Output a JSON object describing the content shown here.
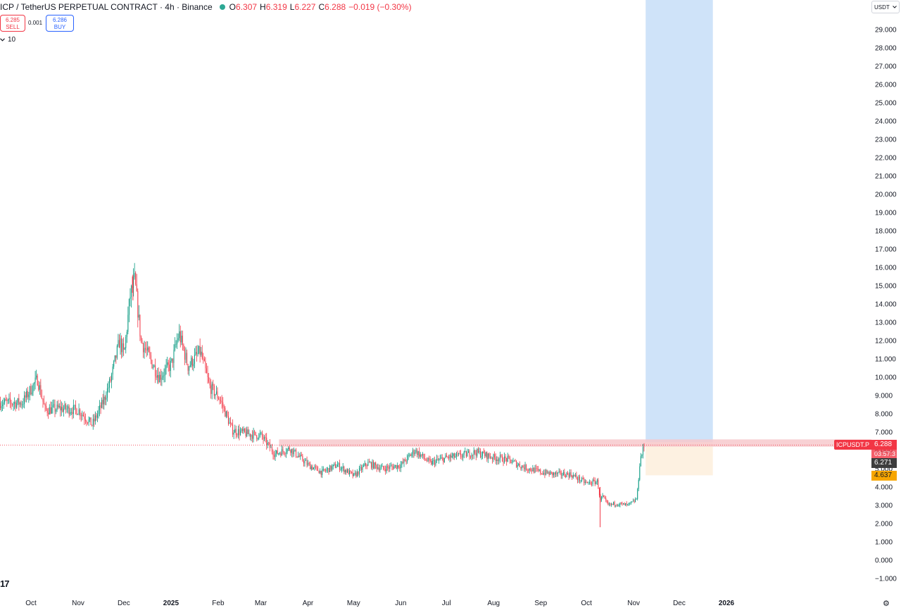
{
  "header": {
    "symbol": "ICP / TetherUS PERPETUAL CONTRACT · 4h · Binance",
    "ohlc": [
      {
        "key": "O",
        "value": "6.307"
      },
      {
        "key": "H",
        "value": "6.319"
      },
      {
        "key": "L",
        "value": "6.227"
      },
      {
        "key": "C",
        "value": "6.288"
      }
    ],
    "change": "−0.019 (−0.30%)",
    "status_color": "#089981"
  },
  "trade": {
    "sell_price": "6.285",
    "sell_label": "SELL",
    "spread": "0.001",
    "buy_price": "6.286",
    "buy_label": "BUY"
  },
  "interval_value": "10",
  "currency": "USDT",
  "logo": "17",
  "tags": {
    "symbol": "ICPUSDT.P",
    "last_price": "6.288",
    "countdown": "03:57:3",
    "price_2": "6.271",
    "price_3": "4.637"
  },
  "icons": [
    "chevron-down-icon",
    "gear-icon",
    "status-dot-icon"
  ],
  "colors": {
    "up": "#089981",
    "down": "#f23645",
    "target_zone": "#cfe3f9",
    "stop_zone": "#fdf1e1",
    "resistance_zone": "#f7c9cd",
    "last_price_tag": "#f23645",
    "tag_2": "#3d3d3d",
    "tag_3": "#f7a600"
  },
  "chart_data": {
    "type": "line",
    "subtype": "candlestick",
    "title": "ICP / TetherUS PERPETUAL CONTRACT · 4h · Binance",
    "xlabel": "",
    "ylabel": "",
    "x_ticks": [
      "Oct",
      "Nov",
      "Dec",
      "2025",
      "Feb",
      "Mar",
      "Apr",
      "May",
      "Jun",
      "Jul",
      "Aug",
      "Sep",
      "Oct",
      "Nov",
      "Dec",
      "2026"
    ],
    "y_ticks": [
      "29.000",
      "28.000",
      "27.000",
      "26.000",
      "25.000",
      "24.000",
      "23.000",
      "22.000",
      "21.000",
      "20.000",
      "19.000",
      "18.000",
      "17.000",
      "16.000",
      "15.000",
      "14.000",
      "13.000",
      "12.000",
      "11.000",
      "10.000",
      "9.000",
      "8.000",
      "7.000",
      "6.000",
      "5.000",
      "4.000",
      "3.000",
      "2.000",
      "1.000",
      "0.000",
      "−1.000"
    ],
    "ylim": [
      -1.5,
      30
    ],
    "grid": false,
    "series": [
      {
        "x": [
          "2024-09-25",
          "2024-10-05",
          "2024-10-10",
          "2024-10-20",
          "2024-11-01",
          "2024-11-10",
          "2024-11-17",
          "2024-11-22",
          "2024-11-28",
          "2024-12-01",
          "2024-12-05",
          "2024-12-08",
          "2024-12-12",
          "2024-12-18",
          "2024-12-24",
          "2025-01-01",
          "2025-01-06",
          "2025-01-12",
          "2025-01-20",
          "2025-01-26",
          "2025-02-02",
          "2025-02-10",
          "2025-02-20",
          "2025-03-01",
          "2025-03-10",
          "2025-03-20",
          "2025-04-01",
          "2025-04-10",
          "2025-04-20",
          "2025-05-01",
          "2025-05-10",
          "2025-05-20",
          "2025-06-01",
          "2025-06-10",
          "2025-06-20",
          "2025-07-01",
          "2025-07-10",
          "2025-07-20",
          "2025-08-01",
          "2025-08-10",
          "2025-08-20",
          "2025-09-01",
          "2025-09-10",
          "2025-09-20",
          "2025-10-01",
          "2025-10-08",
          "2025-10-10",
          "2025-10-11",
          "2025-10-15",
          "2025-10-20",
          "2025-10-28",
          "2025-11-01",
          "2025-11-03",
          "2025-11-05",
          "2025-11-08"
        ],
        "y": [
          8.6,
          9.9,
          8.2,
          8.3,
          8.2,
          7.4,
          8.6,
          9.8,
          12.0,
          11.2,
          14.5,
          15.3,
          12.0,
          11.0,
          10.0,
          10.7,
          12.4,
          10.6,
          11.4,
          9.5,
          8.8,
          7.1,
          6.9,
          6.8,
          5.8,
          6.1,
          5.2,
          4.8,
          5.2,
          4.6,
          5.3,
          5.0,
          5.2,
          6.0,
          5.3,
          5.6,
          5.7,
          5.9,
          5.6,
          5.5,
          5.1,
          4.8,
          4.7,
          4.7,
          4.2,
          4.3,
          3.2,
          3.5,
          3.0,
          3.1,
          3.0,
          3.2,
          3.4,
          5.5,
          6.288
        ],
        "high": 15.6,
        "low": 1.8
      }
    ],
    "zones": {
      "resistance": [
        6.2,
        6.6
      ],
      "target": [
        6.45,
        30
      ],
      "stop": [
        4.637,
        6.45
      ]
    }
  }
}
